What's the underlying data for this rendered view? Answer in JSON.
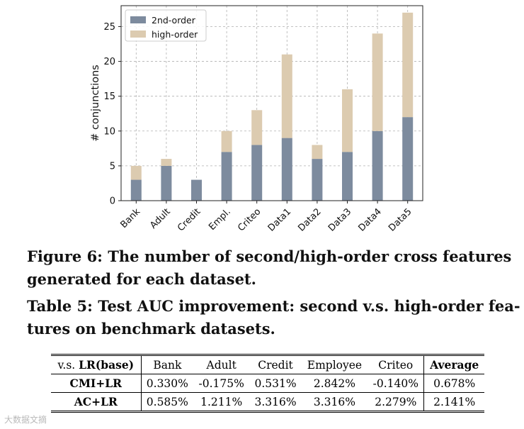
{
  "chart_data": {
    "type": "bar",
    "stacked": true,
    "categories": [
      "Bank",
      "Adult",
      "Credit",
      "Empl.",
      "Criteo",
      "Data1",
      "Data2",
      "Data3",
      "Data4",
      "Data5"
    ],
    "series": [
      {
        "name": "2nd-order",
        "values": [
          3,
          5,
          3,
          7,
          8,
          9,
          6,
          7,
          10,
          12
        ],
        "color": "#7d8b9e"
      },
      {
        "name": "high-order",
        "values": [
          2,
          1,
          0,
          3,
          5,
          12,
          2,
          9,
          14,
          15
        ],
        "color": "#dccbb0"
      }
    ],
    "ylabel": "# conjunctions",
    "xlabel": "",
    "ylim": [
      0,
      28
    ],
    "yticks": [
      0,
      5,
      10,
      15,
      20,
      25
    ],
    "grid": true,
    "legend_position": "top-left"
  },
  "figure_caption": {
    "line1": "Figure 6: The number of second/high-order cross features",
    "line2": "generated for each dataset."
  },
  "table_caption": {
    "line1": "Table 5: Test AUC improvement: second v.s. high-order fea-",
    "line2": "tures on benchmark datasets."
  },
  "table": {
    "corner_prefix": "v.s. ",
    "corner_bold": "LR(base)",
    "columns": [
      "Bank",
      "Adult",
      "Credit",
      "Employee",
      "Criteo"
    ],
    "average_label": "Average",
    "rows": [
      {
        "label": "CMI+LR",
        "values": [
          "0.330%",
          "-0.175%",
          "0.531%",
          "2.842%",
          "-0.140%"
        ],
        "average": "0.678%"
      },
      {
        "label": "AC+LR",
        "values": [
          "0.585%",
          "1.211%",
          "3.316%",
          "3.316%",
          "2.279%"
        ],
        "average": "2.141%"
      }
    ]
  },
  "watermark": "大数据文摘"
}
